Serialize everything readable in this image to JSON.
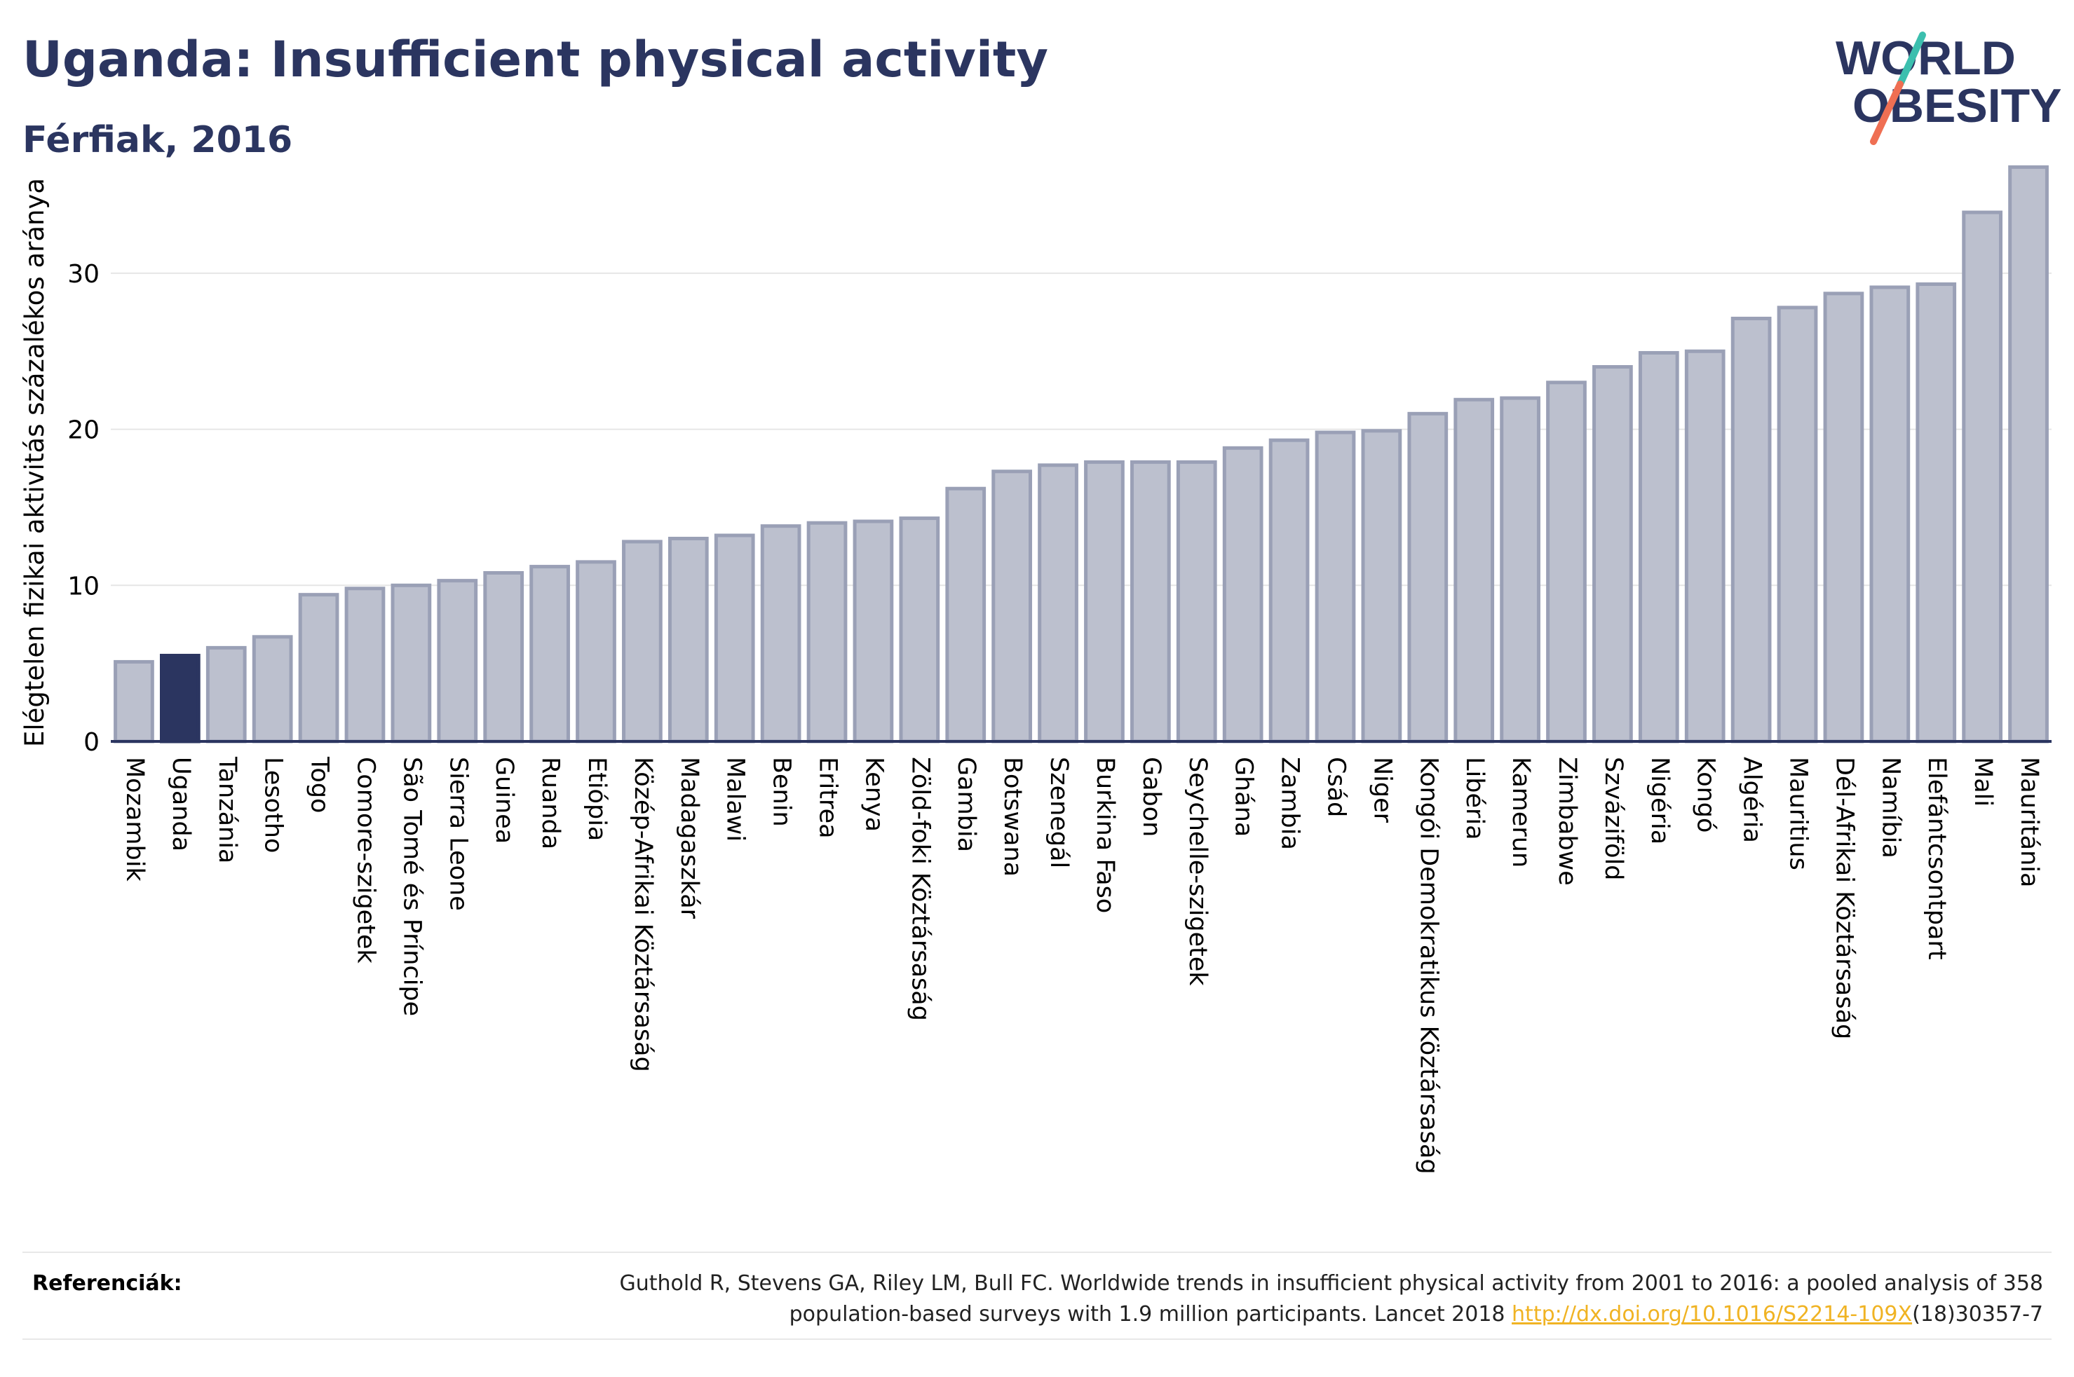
{
  "title": "Uganda: Insufficient physical activity",
  "subtitle": "Férfiak, 2016",
  "logo": {
    "line1": "WORLD",
    "line2": "OBESITY"
  },
  "colors": {
    "bar": "#bcc0ce",
    "bar_stroke": "#9aa0b6",
    "highlight": "#2b3560",
    "title": "#2b3560",
    "link": "#f0b323"
  },
  "chart_data": {
    "type": "bar",
    "ylabel": "Elégtelen fizikai aktivitás százalékos aránya",
    "ylim": [
      0,
      37
    ],
    "yticks": [
      0,
      10,
      20,
      30
    ],
    "grid": true,
    "highlight": "Uganda",
    "categories": [
      "Mozambik",
      "Uganda",
      "Tanzánia",
      "Lesotho",
      "Togo",
      "Comore-szigetek",
      "São Tomé és Príncipe",
      "Sierra Leone",
      "Guinea",
      "Ruanda",
      "Etiópia",
      "Közép-Afrikai Köztársaság",
      "Madagaszkár",
      "Malawi",
      "Benin",
      "Eritrea",
      "Kenya",
      "Zöld-foki Köztársaság",
      "Gambia",
      "Botswana",
      "Szenegál",
      "Burkina Faso",
      "Gabon",
      "Seychelle-szigetek",
      "Ghána",
      "Zambia",
      "Csád",
      "Niger",
      "Kongói Demokratikus Köztársaság",
      "Libéria",
      "Kamerun",
      "Zimbabwe",
      "Szváziföld",
      "Nigéria",
      "Kongó",
      "Algéria",
      "Mauritius",
      "Dél-Afrikai Köztársaság",
      "Namíbia",
      "Elefántcsontpart",
      "Mali",
      "Mauritánia"
    ],
    "values": [
      5.1,
      5.5,
      6.0,
      6.7,
      9.4,
      9.8,
      10.0,
      10.3,
      10.8,
      11.2,
      11.5,
      12.8,
      13.0,
      13.2,
      13.8,
      14.0,
      14.1,
      14.3,
      16.2,
      17.3,
      17.7,
      17.9,
      17.9,
      17.9,
      18.8,
      19.3,
      19.8,
      19.9,
      21.0,
      21.9,
      22.0,
      23.0,
      24.0,
      24.9,
      25.0,
      27.1,
      27.8,
      28.7,
      29.1,
      29.3,
      33.9,
      36.8
    ]
  },
  "references": {
    "label": "Referenciák:",
    "line1": "Guthold R, Stevens GA, Riley LM, Bull FC. Worldwide trends in insufficient physical activity from 2001 to 2016: a pooled analysis of 358",
    "line2_pre": "population-based surveys with 1.9 million participants. Lancet 2018 ",
    "link": "http://dx.doi.org/10.1016/S2214-109X",
    "line2_post": "(18)30357-7"
  }
}
